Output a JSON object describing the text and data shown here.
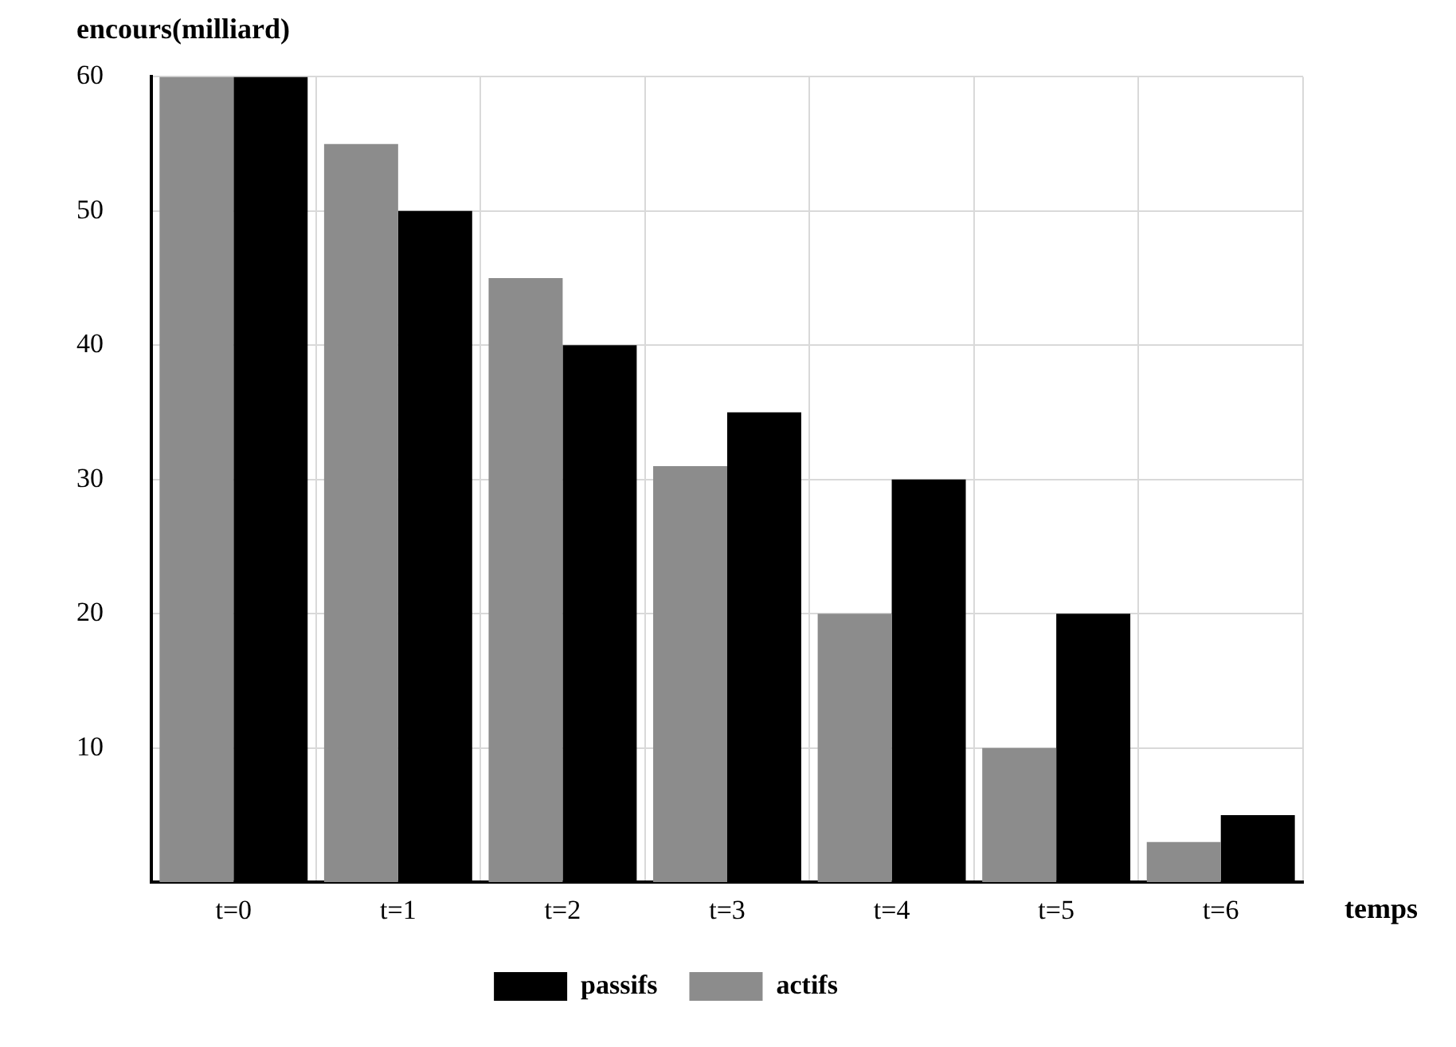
{
  "chart_data": {
    "type": "bar",
    "xlabel": "temps",
    "ylabel": "encours(milliard)",
    "categories": [
      "t=0",
      "t=1",
      "t=2",
      "t=3",
      "t=4",
      "t=5",
      "t=6"
    ],
    "series": [
      {
        "name": "actifs",
        "color": "#8c8c8c",
        "values": [
          60,
          55,
          45,
          31,
          20,
          10,
          3
        ]
      },
      {
        "name": "passifs",
        "color": "#000000",
        "values": [
          60,
          50,
          40,
          35,
          30,
          20,
          5
        ]
      }
    ],
    "ylim": [
      0,
      60
    ],
    "yticks": [
      10,
      20,
      30,
      40,
      50,
      60
    ],
    "grid": true,
    "legend": "bottom"
  }
}
